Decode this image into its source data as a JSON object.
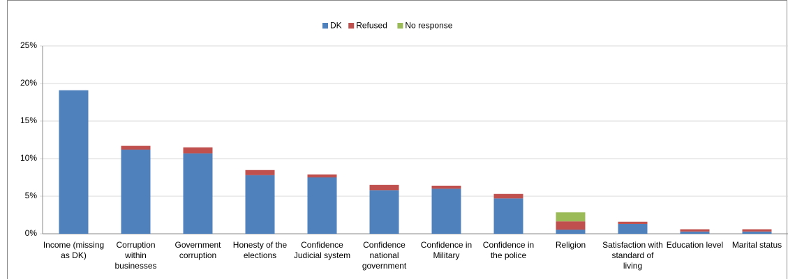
{
  "chart_data": {
    "type": "stacked_bar",
    "categories": [
      "Income (missing as DK)",
      "Corruption within businesses",
      "Government corruption",
      "Honesty of the elections",
      "Confidence Judicial system",
      "Confidence national government",
      "Confidence in Military",
      "Confidence in the police",
      "Religion",
      "Satisfaction with standard of living",
      "Education level",
      "Marital status"
    ],
    "series": [
      {
        "name": "DK",
        "color": "#4f81bd",
        "values": [
          19.1,
          11.2,
          10.7,
          7.8,
          7.5,
          5.8,
          6.0,
          4.7,
          0.55,
          1.3,
          0.3,
          0.3
        ]
      },
      {
        "name": "Refused",
        "color": "#c0504d",
        "values": [
          0,
          0.5,
          0.8,
          0.7,
          0.4,
          0.7,
          0.4,
          0.6,
          1.1,
          0.3,
          0.3,
          0.3
        ]
      },
      {
        "name": "No response",
        "color": "#9bbb59",
        "values": [
          0,
          0,
          0,
          0,
          0,
          0,
          0,
          0,
          1.2,
          0,
          0,
          0
        ]
      }
    ],
    "ylim": [
      0,
      25
    ],
    "yticks": [
      {
        "value": 0,
        "label": "0%"
      },
      {
        "value": 5,
        "label": "5%"
      },
      {
        "value": 10,
        "label": "10%"
      },
      {
        "value": 15,
        "label": "15%"
      },
      {
        "value": 20,
        "label": "20%"
      },
      {
        "value": 25,
        "label": "25%"
      }
    ],
    "grid": true,
    "legend": "top"
  }
}
